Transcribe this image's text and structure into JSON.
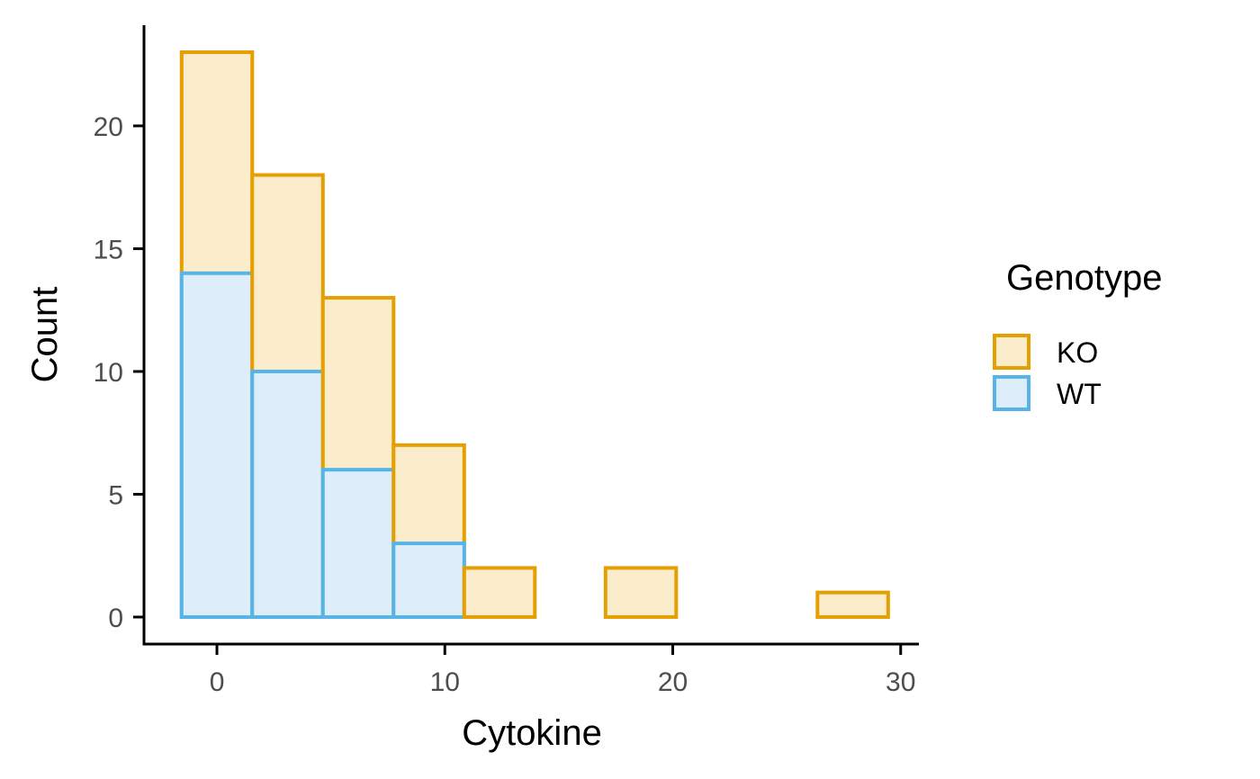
{
  "chart_data": {
    "type": "bar",
    "subtype": "stacked-histogram",
    "xlabel": "Cytokine",
    "ylabel": "Count",
    "xlim": [
      -3.2,
      30.8
    ],
    "ylim": [
      -1.1,
      24.1
    ],
    "x_ticks": [
      0,
      10,
      20,
      30
    ],
    "y_ticks": [
      0,
      5,
      10,
      15,
      20
    ],
    "bin_edges": [
      -1.55,
      1.55,
      4.65,
      7.75,
      10.85,
      13.95,
      17.05,
      20.15,
      23.25,
      26.35,
      29.45
    ],
    "series": [
      {
        "name": "WT",
        "fill": "#DDEEFA",
        "stroke": "#56B4E9",
        "values": [
          14,
          10,
          6,
          3,
          0,
          0,
          0,
          0,
          0,
          0
        ]
      },
      {
        "name": "KO",
        "fill": "#FBECCC",
        "stroke": "#E69F00",
        "values": [
          9,
          8,
          7,
          4,
          2,
          0,
          2,
          0,
          0,
          1
        ]
      }
    ],
    "legend": {
      "title": "Genotype",
      "placement": "right",
      "entries": [
        "KO",
        "WT"
      ]
    },
    "grid": false
  }
}
